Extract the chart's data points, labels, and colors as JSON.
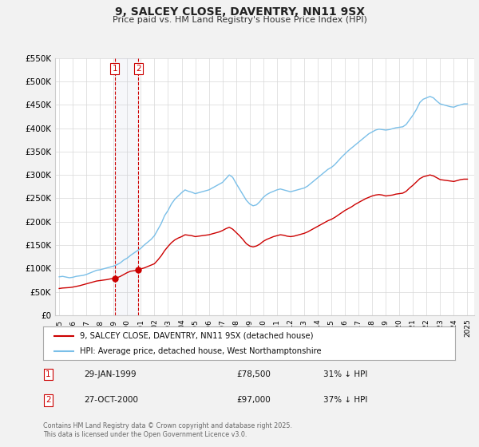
{
  "title": "9, SALCEY CLOSE, DAVENTRY, NN11 9SX",
  "subtitle": "Price paid vs. HM Land Registry's House Price Index (HPI)",
  "ylim": [
    0,
    550000
  ],
  "yticks": [
    0,
    50000,
    100000,
    150000,
    200000,
    250000,
    300000,
    350000,
    400000,
    450000,
    500000,
    550000
  ],
  "ytick_labels": [
    "£0",
    "£50K",
    "£100K",
    "£150K",
    "£200K",
    "£250K",
    "£300K",
    "£350K",
    "£400K",
    "£450K",
    "£500K",
    "£550K"
  ],
  "bg_color": "#f2f2f2",
  "plot_bg_color": "#ffffff",
  "hpi_color": "#7abfe8",
  "price_color": "#cc0000",
  "sale1_date": 1999.08,
  "sale1_price": 78500,
  "sale2_date": 2000.82,
  "sale2_price": 97000,
  "sale1_label": "29-JAN-1999",
  "sale2_label": "27-OCT-2000",
  "sale1_price_str": "£78,500",
  "sale2_price_str": "£97,000",
  "sale1_pct": "31% ↓ HPI",
  "sale2_pct": "37% ↓ HPI",
  "legend1": "9, SALCEY CLOSE, DAVENTRY, NN11 9SX (detached house)",
  "legend2": "HPI: Average price, detached house, West Northamptonshire",
  "footnote": "Contains HM Land Registry data © Crown copyright and database right 2025.\nThis data is licensed under the Open Government Licence v3.0.",
  "hpi_data": [
    [
      1995.0,
      82000
    ],
    [
      1995.25,
      83000
    ],
    [
      1995.5,
      81500
    ],
    [
      1995.75,
      80000
    ],
    [
      1996.0,
      81000
    ],
    [
      1996.25,
      83000
    ],
    [
      1996.5,
      84000
    ],
    [
      1996.75,
      85000
    ],
    [
      1997.0,
      87000
    ],
    [
      1997.25,
      90000
    ],
    [
      1997.5,
      93000
    ],
    [
      1997.75,
      96000
    ],
    [
      1998.0,
      97000
    ],
    [
      1998.25,
      99000
    ],
    [
      1998.5,
      101000
    ],
    [
      1998.75,
      103000
    ],
    [
      1999.0,
      105000
    ],
    [
      1999.25,
      108000
    ],
    [
      1999.5,
      112000
    ],
    [
      1999.75,
      118000
    ],
    [
      2000.0,
      122000
    ],
    [
      2000.25,
      128000
    ],
    [
      2000.5,
      133000
    ],
    [
      2000.75,
      138000
    ],
    [
      2001.0,
      143000
    ],
    [
      2001.25,
      150000
    ],
    [
      2001.5,
      156000
    ],
    [
      2001.75,
      162000
    ],
    [
      2002.0,
      170000
    ],
    [
      2002.25,
      183000
    ],
    [
      2002.5,
      196000
    ],
    [
      2002.75,
      213000
    ],
    [
      2003.0,
      224000
    ],
    [
      2003.25,
      238000
    ],
    [
      2003.5,
      248000
    ],
    [
      2003.75,
      255000
    ],
    [
      2004.0,
      262000
    ],
    [
      2004.25,
      268000
    ],
    [
      2004.5,
      265000
    ],
    [
      2004.75,
      263000
    ],
    [
      2005.0,
      260000
    ],
    [
      2005.25,
      262000
    ],
    [
      2005.5,
      264000
    ],
    [
      2005.75,
      266000
    ],
    [
      2006.0,
      268000
    ],
    [
      2006.25,
      272000
    ],
    [
      2006.5,
      276000
    ],
    [
      2006.75,
      280000
    ],
    [
      2007.0,
      284000
    ],
    [
      2007.25,
      292000
    ],
    [
      2007.5,
      300000
    ],
    [
      2007.75,
      295000
    ],
    [
      2008.0,
      282000
    ],
    [
      2008.25,
      270000
    ],
    [
      2008.5,
      258000
    ],
    [
      2008.75,
      246000
    ],
    [
      2009.0,
      238000
    ],
    [
      2009.25,
      234000
    ],
    [
      2009.5,
      236000
    ],
    [
      2009.75,
      243000
    ],
    [
      2010.0,
      252000
    ],
    [
      2010.25,
      258000
    ],
    [
      2010.5,
      262000
    ],
    [
      2010.75,
      265000
    ],
    [
      2011.0,
      268000
    ],
    [
      2011.25,
      270000
    ],
    [
      2011.5,
      268000
    ],
    [
      2011.75,
      266000
    ],
    [
      2012.0,
      264000
    ],
    [
      2012.25,
      266000
    ],
    [
      2012.5,
      268000
    ],
    [
      2012.75,
      270000
    ],
    [
      2013.0,
      272000
    ],
    [
      2013.25,
      276000
    ],
    [
      2013.5,
      282000
    ],
    [
      2013.75,
      288000
    ],
    [
      2014.0,
      294000
    ],
    [
      2014.25,
      300000
    ],
    [
      2014.5,
      306000
    ],
    [
      2014.75,
      312000
    ],
    [
      2015.0,
      316000
    ],
    [
      2015.25,
      322000
    ],
    [
      2015.5,
      330000
    ],
    [
      2015.75,
      338000
    ],
    [
      2016.0,
      345000
    ],
    [
      2016.25,
      352000
    ],
    [
      2016.5,
      358000
    ],
    [
      2016.75,
      364000
    ],
    [
      2017.0,
      370000
    ],
    [
      2017.25,
      376000
    ],
    [
      2017.5,
      382000
    ],
    [
      2017.75,
      388000
    ],
    [
      2018.0,
      392000
    ],
    [
      2018.25,
      396000
    ],
    [
      2018.5,
      398000
    ],
    [
      2018.75,
      397000
    ],
    [
      2019.0,
      396000
    ],
    [
      2019.25,
      397000
    ],
    [
      2019.5,
      399000
    ],
    [
      2019.75,
      401000
    ],
    [
      2020.0,
      402000
    ],
    [
      2020.25,
      403000
    ],
    [
      2020.5,
      408000
    ],
    [
      2020.75,
      418000
    ],
    [
      2021.0,
      428000
    ],
    [
      2021.25,
      440000
    ],
    [
      2021.5,
      455000
    ],
    [
      2021.75,
      462000
    ],
    [
      2022.0,
      465000
    ],
    [
      2022.25,
      468000
    ],
    [
      2022.5,
      465000
    ],
    [
      2022.75,
      458000
    ],
    [
      2023.0,
      452000
    ],
    [
      2023.25,
      450000
    ],
    [
      2023.5,
      448000
    ],
    [
      2023.75,
      446000
    ],
    [
      2024.0,
      445000
    ],
    [
      2024.25,
      448000
    ],
    [
      2024.5,
      450000
    ],
    [
      2024.75,
      452000
    ],
    [
      2025.0,
      452000
    ]
  ],
  "price_data": [
    [
      1995.0,
      57000
    ],
    [
      1995.25,
      58000
    ],
    [
      1995.5,
      58500
    ],
    [
      1995.75,
      59000
    ],
    [
      1996.0,
      60000
    ],
    [
      1996.25,
      61500
    ],
    [
      1996.5,
      63000
    ],
    [
      1996.75,
      65000
    ],
    [
      1997.0,
      67000
    ],
    [
      1997.25,
      69000
    ],
    [
      1997.5,
      71000
    ],
    [
      1997.75,
      73000
    ],
    [
      1998.0,
      74000
    ],
    [
      1998.25,
      75000
    ],
    [
      1998.5,
      76000
    ],
    [
      1998.75,
      77500
    ],
    [
      1999.0,
      78500
    ],
    [
      1999.08,
      78500
    ],
    [
      1999.25,
      80000
    ],
    [
      1999.5,
      83000
    ],
    [
      1999.75,
      87000
    ],
    [
      2000.0,
      91000
    ],
    [
      2000.25,
      94000
    ],
    [
      2000.5,
      95000
    ],
    [
      2000.75,
      96000
    ],
    [
      2000.82,
      97000
    ],
    [
      2001.0,
      99000
    ],
    [
      2001.25,
      101000
    ],
    [
      2001.5,
      104000
    ],
    [
      2001.75,
      107000
    ],
    [
      2002.0,
      110000
    ],
    [
      2002.25,
      118000
    ],
    [
      2002.5,
      127000
    ],
    [
      2002.75,
      138000
    ],
    [
      2003.0,
      147000
    ],
    [
      2003.25,
      155000
    ],
    [
      2003.5,
      161000
    ],
    [
      2003.75,
      165000
    ],
    [
      2004.0,
      168000
    ],
    [
      2004.25,
      172000
    ],
    [
      2004.5,
      171000
    ],
    [
      2004.75,
      170000
    ],
    [
      2005.0,
      168000
    ],
    [
      2005.25,
      169000
    ],
    [
      2005.5,
      170000
    ],
    [
      2005.75,
      171000
    ],
    [
      2006.0,
      172000
    ],
    [
      2006.25,
      174000
    ],
    [
      2006.5,
      176000
    ],
    [
      2006.75,
      178000
    ],
    [
      2007.0,
      181000
    ],
    [
      2007.25,
      185000
    ],
    [
      2007.5,
      188000
    ],
    [
      2007.75,
      184000
    ],
    [
      2008.0,
      177000
    ],
    [
      2008.25,
      170000
    ],
    [
      2008.5,
      162000
    ],
    [
      2008.75,
      153000
    ],
    [
      2009.0,
      148000
    ],
    [
      2009.25,
      146000
    ],
    [
      2009.5,
      148000
    ],
    [
      2009.75,
      152000
    ],
    [
      2010.0,
      158000
    ],
    [
      2010.25,
      162000
    ],
    [
      2010.5,
      165000
    ],
    [
      2010.75,
      168000
    ],
    [
      2011.0,
      170000
    ],
    [
      2011.25,
      172000
    ],
    [
      2011.5,
      171000
    ],
    [
      2011.75,
      169000
    ],
    [
      2012.0,
      168000
    ],
    [
      2012.25,
      169000
    ],
    [
      2012.5,
      171000
    ],
    [
      2012.75,
      173000
    ],
    [
      2013.0,
      175000
    ],
    [
      2013.25,
      178000
    ],
    [
      2013.5,
      182000
    ],
    [
      2013.75,
      186000
    ],
    [
      2014.0,
      190000
    ],
    [
      2014.25,
      194000
    ],
    [
      2014.5,
      198000
    ],
    [
      2014.75,
      202000
    ],
    [
      2015.0,
      205000
    ],
    [
      2015.25,
      209000
    ],
    [
      2015.5,
      214000
    ],
    [
      2015.75,
      219000
    ],
    [
      2016.0,
      224000
    ],
    [
      2016.25,
      228000
    ],
    [
      2016.5,
      232000
    ],
    [
      2016.75,
      237000
    ],
    [
      2017.0,
      241000
    ],
    [
      2017.25,
      245000
    ],
    [
      2017.5,
      249000
    ],
    [
      2017.75,
      252000
    ],
    [
      2018.0,
      255000
    ],
    [
      2018.25,
      257000
    ],
    [
      2018.5,
      258000
    ],
    [
      2018.75,
      257000
    ],
    [
      2019.0,
      255000
    ],
    [
      2019.25,
      256000
    ],
    [
      2019.5,
      257000
    ],
    [
      2019.75,
      259000
    ],
    [
      2020.0,
      260000
    ],
    [
      2020.25,
      261000
    ],
    [
      2020.5,
      265000
    ],
    [
      2020.75,
      272000
    ],
    [
      2021.0,
      278000
    ],
    [
      2021.25,
      285000
    ],
    [
      2021.5,
      292000
    ],
    [
      2021.75,
      296000
    ],
    [
      2022.0,
      298000
    ],
    [
      2022.25,
      300000
    ],
    [
      2022.5,
      298000
    ],
    [
      2022.75,
      294000
    ],
    [
      2023.0,
      290000
    ],
    [
      2023.25,
      289000
    ],
    [
      2023.5,
      288000
    ],
    [
      2023.75,
      287000
    ],
    [
      2024.0,
      286000
    ],
    [
      2024.25,
      288000
    ],
    [
      2024.5,
      290000
    ],
    [
      2024.75,
      291000
    ],
    [
      2025.0,
      291000
    ]
  ]
}
